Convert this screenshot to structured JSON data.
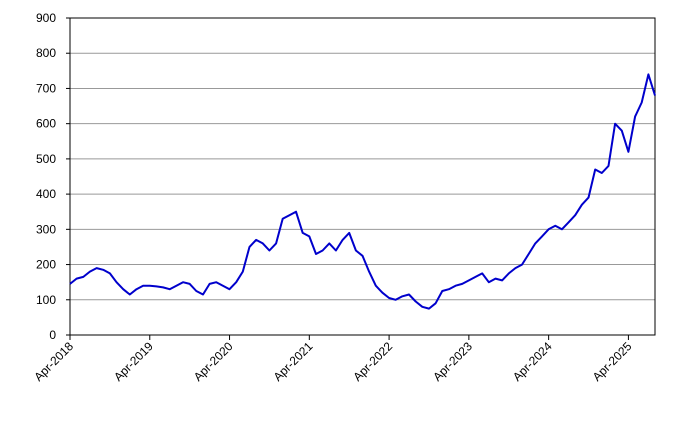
{
  "chart_data": {
    "type": "line",
    "x": [
      "2018-04",
      "2018-05",
      "2018-06",
      "2018-07",
      "2018-08",
      "2018-09",
      "2018-10",
      "2018-11",
      "2018-12",
      "2019-01",
      "2019-02",
      "2019-03",
      "2019-04",
      "2019-05",
      "2019-06",
      "2019-07",
      "2019-08",
      "2019-09",
      "2019-10",
      "2019-11",
      "2019-12",
      "2020-01",
      "2020-02",
      "2020-03",
      "2020-04",
      "2020-05",
      "2020-06",
      "2020-07",
      "2020-08",
      "2020-09",
      "2020-10",
      "2020-11",
      "2020-12",
      "2021-01",
      "2021-02",
      "2021-03",
      "2021-04",
      "2021-05",
      "2021-06",
      "2021-07",
      "2021-08",
      "2021-09",
      "2021-10",
      "2021-11",
      "2021-12",
      "2022-01",
      "2022-02",
      "2022-03",
      "2022-04",
      "2022-05",
      "2022-06",
      "2022-07",
      "2022-08",
      "2022-09",
      "2022-10",
      "2022-11",
      "2022-12",
      "2023-01",
      "2023-02",
      "2023-03",
      "2023-04",
      "2023-05",
      "2023-06",
      "2023-07",
      "2023-08",
      "2023-09",
      "2023-10",
      "2023-11",
      "2023-12",
      "2024-01",
      "2024-02",
      "2024-03",
      "2024-04",
      "2024-05",
      "2024-06",
      "2024-07",
      "2024-08",
      "2024-09",
      "2024-10",
      "2024-11",
      "2024-12",
      "2025-01",
      "2025-02",
      "2025-03",
      "2025-04",
      "2025-05",
      "2025-06",
      "2025-07",
      "2025-08"
    ],
    "values": [
      145,
      160,
      165,
      180,
      190,
      185,
      175,
      150,
      130,
      115,
      130,
      140,
      140,
      138,
      135,
      130,
      140,
      150,
      145,
      125,
      115,
      145,
      150,
      140,
      130,
      150,
      180,
      250,
      270,
      260,
      240,
      260,
      330,
      340,
      350,
      290,
      280,
      230,
      240,
      260,
      240,
      270,
      290,
      240,
      225,
      180,
      140,
      120,
      105,
      100,
      110,
      115,
      95,
      80,
      75,
      90,
      125,
      130,
      140,
      145,
      155,
      165,
      175,
      150,
      160,
      155,
      175,
      190,
      200,
      230,
      260,
      280,
      300,
      310,
      300,
      320,
      340,
      370,
      390,
      470,
      460,
      480,
      600,
      580,
      520,
      620,
      660,
      740,
      680
    ],
    "color": "#0000cc",
    "xlim": [
      "2018-04",
      "2025-08"
    ],
    "xticks": [
      {
        "value": "2018-04",
        "label": "Apr-2018"
      },
      {
        "value": "2019-04",
        "label": "Apr-2019"
      },
      {
        "value": "2020-04",
        "label": "Apr-2020"
      },
      {
        "value": "2021-04",
        "label": "Apr-2021"
      },
      {
        "value": "2022-04",
        "label": "Apr-2022"
      },
      {
        "value": "2023-04",
        "label": "Apr-2023"
      },
      {
        "value": "2024-04",
        "label": "Apr-2024"
      },
      {
        "value": "2025-04",
        "label": "Apr-2025"
      }
    ],
    "ylim": [
      0,
      900
    ],
    "yticks": [
      0,
      100,
      200,
      300,
      400,
      500,
      600,
      700,
      800,
      900
    ],
    "grid": true
  }
}
